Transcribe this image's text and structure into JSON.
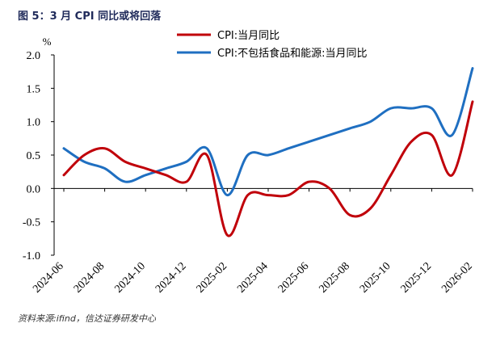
{
  "title": "图 5：3 月 CPI 同比或将回落",
  "source": "资料来源:ifind，信达证券研发中心",
  "chart_data": {
    "type": "line",
    "title": "图 5：3 月 CPI 同比或将回落",
    "xlabel": "",
    "ylabel": "%",
    "ylim": [
      -1.0,
      2.0
    ],
    "yticks": [
      "2.0",
      "1.5",
      "1.0",
      "0.5",
      "0.0",
      "-0.5",
      "-1.0"
    ],
    "ytick_values": [
      2.0,
      1.5,
      1.0,
      0.5,
      0.0,
      -0.5,
      -1.0
    ],
    "grid": false,
    "legend_position": "top-center",
    "x": [
      "2024-06",
      "2024-07",
      "2024-08",
      "2024-09",
      "2024-10",
      "2024-11",
      "2024-12",
      "2025-01",
      "2025-02",
      "2025-03",
      "2025-04",
      "2025-05",
      "2025-06",
      "2025-07",
      "2025-08",
      "2025-09",
      "2025-10",
      "2025-11",
      "2025-12",
      "2026-01",
      "2026-02"
    ],
    "xtick_labels": [
      "2024-06",
      "2024-08",
      "2024-10",
      "2024-12",
      "2025-02",
      "2025-04",
      "2025-06",
      "2025-08",
      "2025-10",
      "2025-12",
      "2026-02"
    ],
    "xtick_indices": [
      0,
      2,
      4,
      6,
      8,
      10,
      12,
      14,
      16,
      18,
      20
    ],
    "series": [
      {
        "name": "CPI:当月同比",
        "color": "#c0000a",
        "values": [
          0.2,
          0.5,
          0.6,
          0.4,
          0.3,
          0.2,
          0.1,
          0.5,
          -0.7,
          -0.1,
          -0.1,
          -0.1,
          0.1,
          0.0,
          -0.4,
          -0.3,
          0.2,
          0.7,
          0.8,
          0.2,
          1.3
        ]
      },
      {
        "name": "CPI:不包括食品和能源:当月同比",
        "color": "#1f6fc1",
        "values": [
          0.6,
          0.4,
          0.3,
          0.1,
          0.2,
          0.3,
          0.4,
          0.6,
          -0.1,
          0.5,
          0.5,
          0.6,
          0.7,
          0.8,
          0.9,
          1.0,
          1.2,
          1.2,
          1.2,
          0.8,
          1.8
        ]
      }
    ]
  }
}
